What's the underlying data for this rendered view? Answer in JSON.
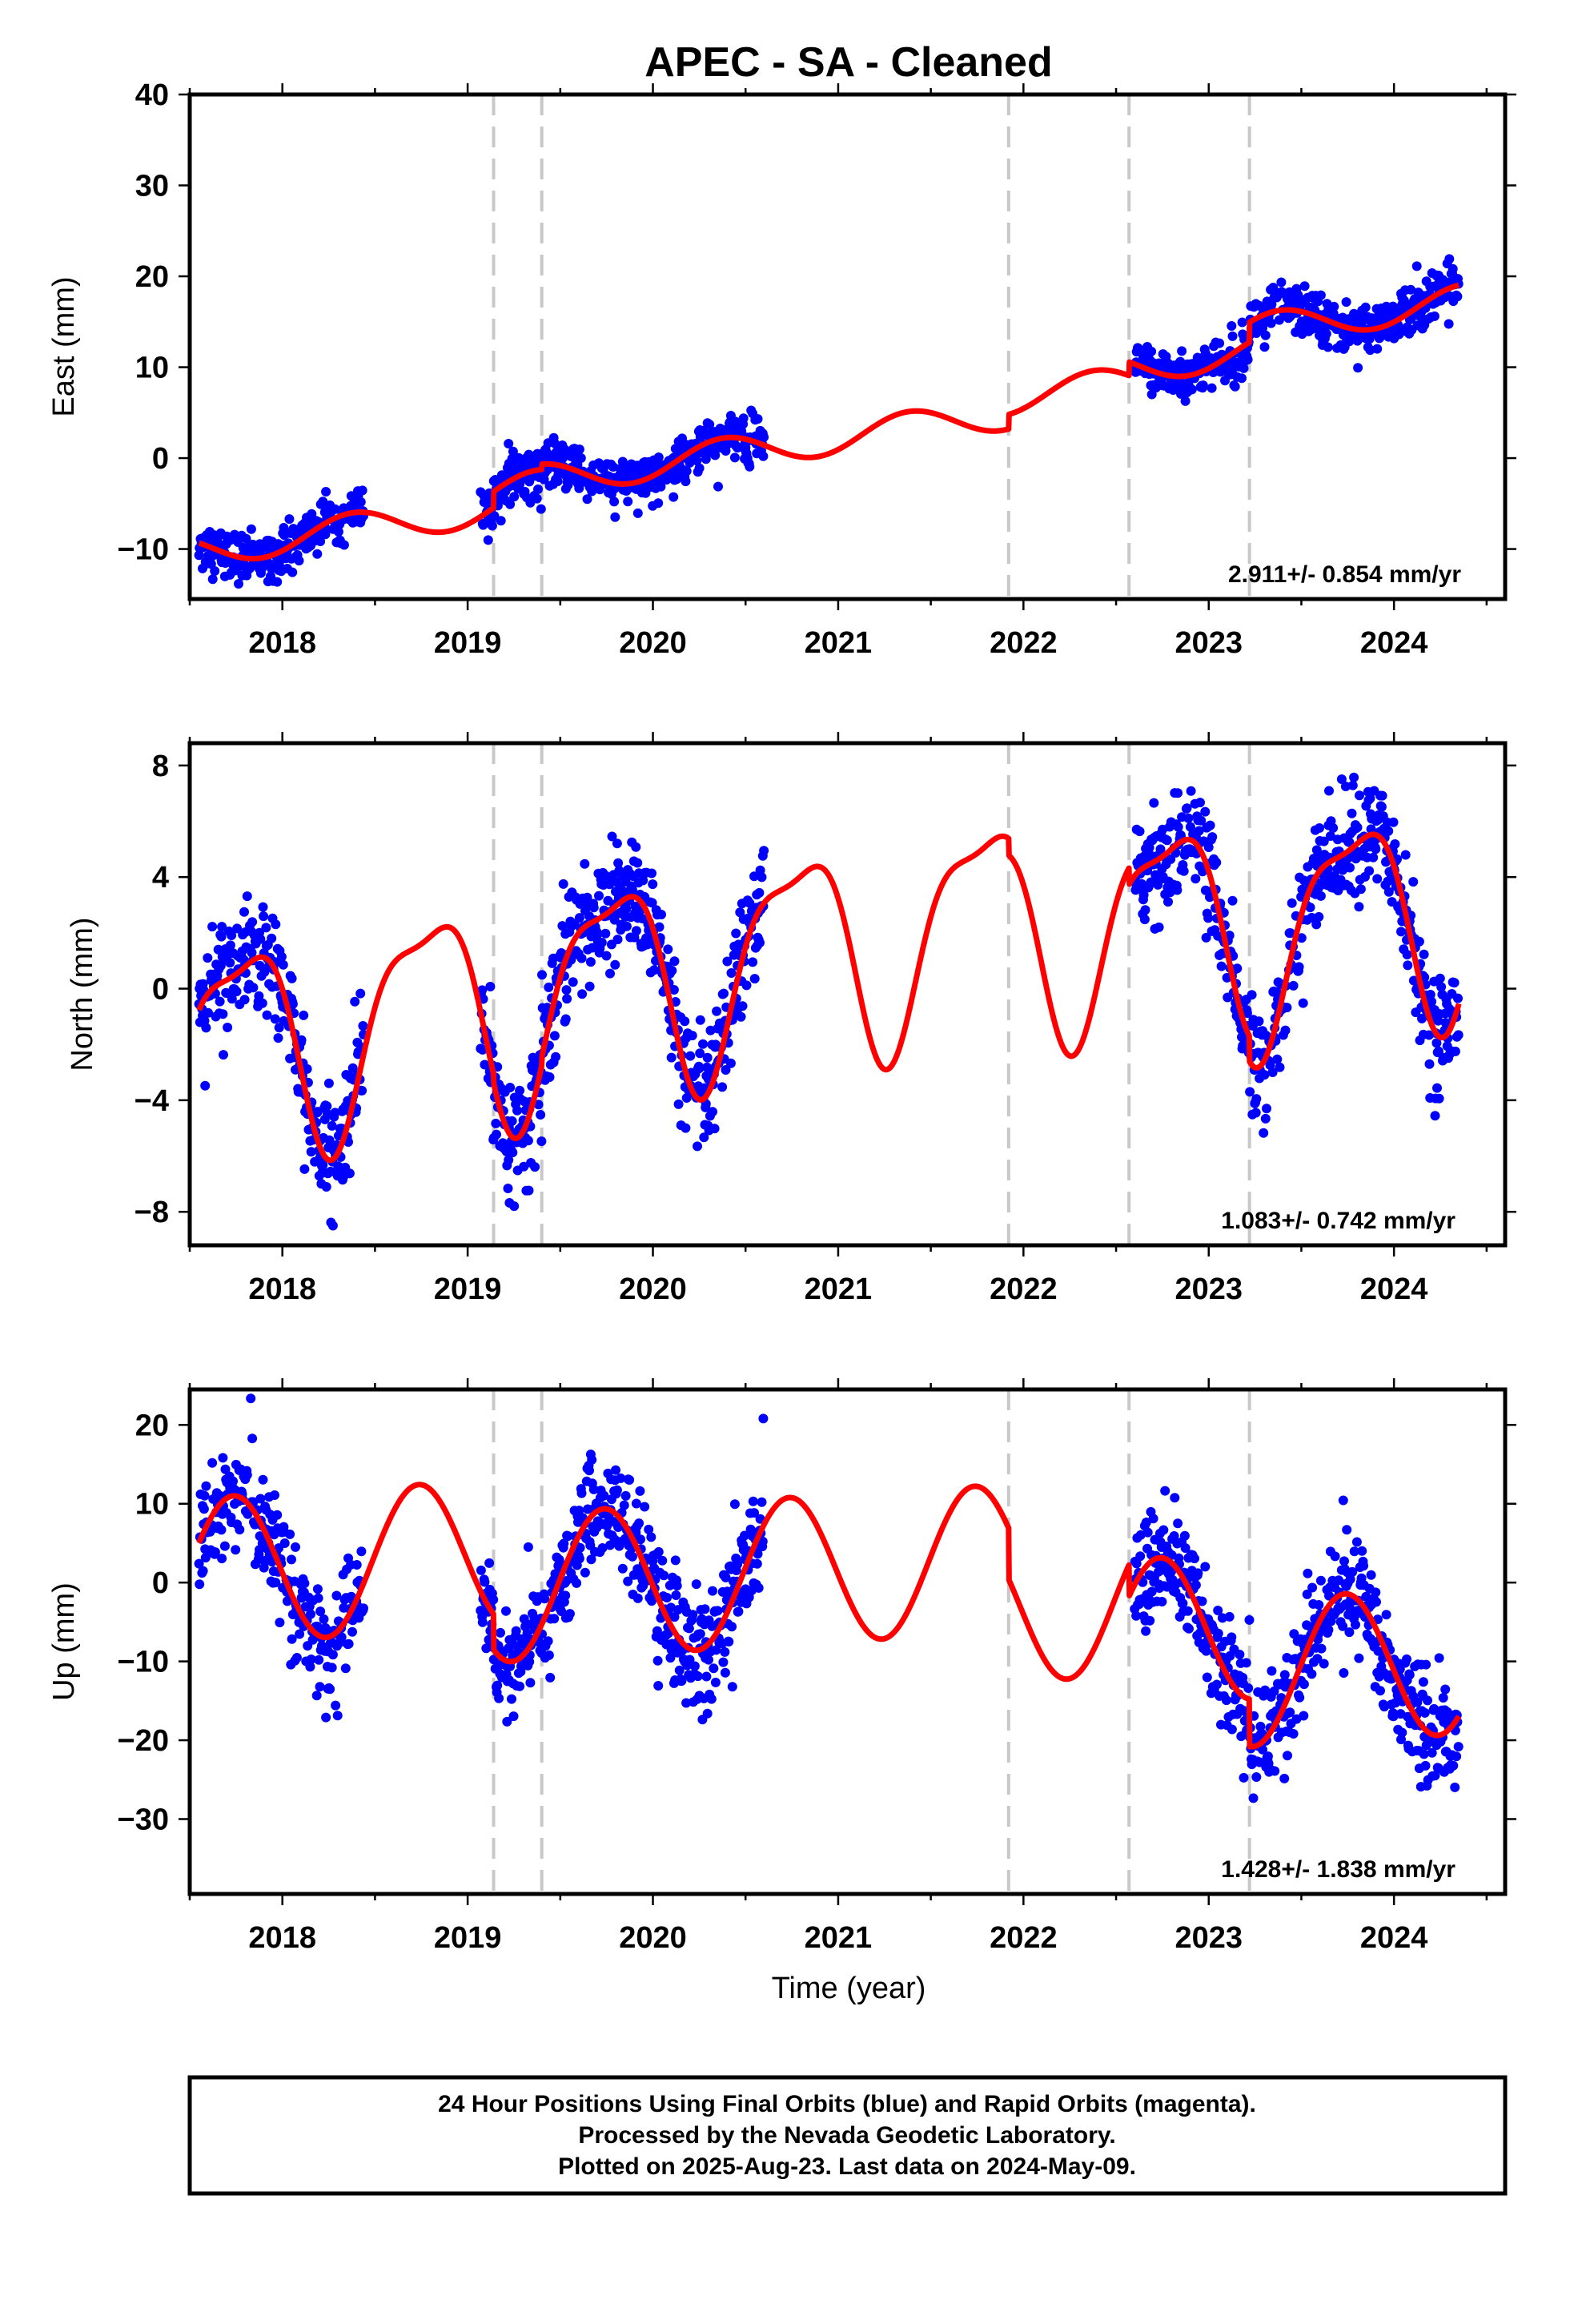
{
  "title": "APEC  - SA - Cleaned",
  "xlabel": "Time (year)",
  "footer": {
    "line1": "24 Hour Positions Using Final Orbits (blue) and Rapid Orbits (magenta).",
    "line2": "Processed by the Nevada Geodetic Laboratory.",
    "line3": "Plotted on 2025-Aug-23. Last data on 2024-May-09."
  },
  "colors": {
    "points": "#0000ff",
    "fit": "#ff0000",
    "gap_lines": "#c8c8c8"
  },
  "chart_data": [
    {
      "type": "scatter",
      "component": "east",
      "ylabel": "East (mm)",
      "ylim": [
        -15.5,
        40
      ],
      "yticks": [
        -10,
        0,
        10,
        20,
        30,
        40
      ],
      "ytick_labels": [
        "−10",
        "0",
        "10",
        "20",
        "30",
        "40"
      ],
      "xlim": [
        2017.5,
        2024.6
      ],
      "xticks": [
        2018,
        2019,
        2020,
        2021,
        2022,
        2023,
        2024
      ],
      "rate_label": "2.911+/- 0.854 mm/yr",
      "equipment_changes": [
        2019.14,
        2019.4,
        2021.92,
        2022.57,
        2023.22
      ],
      "data_segments": [
        [
          2017.55,
          2018.44
        ],
        [
          2019.07,
          2020.6
        ],
        [
          2022.6,
          2024.35
        ]
      ],
      "model": {
        "offset": -10.2,
        "rate": 2.911,
        "ref": 2017.55,
        "annual_sin": 1.2,
        "annual_cos": -1.3,
        "semi_sin": 0.0,
        "semi_cos": 0.0,
        "steps": [
          [
            2019.14,
            1.8
          ],
          [
            2019.4,
            0.6
          ],
          [
            2021.92,
            1.6
          ],
          [
            2022.57,
            1.5
          ],
          [
            2023.22,
            2.2
          ]
        ]
      },
      "scatter_std": 1.3,
      "series": [
        {
          "name": "final orbits",
          "kind": "points"
        },
        {
          "name": "model fit",
          "kind": "line"
        }
      ]
    },
    {
      "type": "scatter",
      "component": "north",
      "ylabel": "North (mm)",
      "ylim": [
        -9.2,
        8.8
      ],
      "yticks": [
        -8,
        -4,
        0,
        4,
        8
      ],
      "ytick_labels": [
        "−8",
        "−4",
        "0",
        "4",
        "8"
      ],
      "xlim": [
        2017.5,
        2024.6
      ],
      "xticks": [
        2018,
        2019,
        2020,
        2021,
        2022,
        2023,
        2024
      ],
      "rate_label": "1.083+/- 0.742 mm/yr",
      "equipment_changes": [
        2019.14,
        2019.4,
        2021.92,
        2022.57,
        2023.22
      ],
      "data_segments": [
        [
          2017.55,
          2018.44
        ],
        [
          2019.07,
          2020.6
        ],
        [
          2022.6,
          2024.35
        ]
      ],
      "model": {
        "offset": -2.2,
        "rate": 1.083,
        "ref": 2017.55,
        "annual_sin": -3.6,
        "annual_cos": 0.6,
        "semi_sin": 0.0,
        "semi_cos": 1.1,
        "steps": [
          [
            2019.14,
            -0.3
          ],
          [
            2019.4,
            0.3
          ],
          [
            2021.92,
            -0.6
          ],
          [
            2022.57,
            -0.6
          ],
          [
            2023.22,
            -0.9
          ]
        ]
      },
      "scatter_std": 1.0,
      "series": [
        {
          "name": "final orbits",
          "kind": "points"
        },
        {
          "name": "model fit",
          "kind": "line"
        }
      ]
    },
    {
      "type": "scatter",
      "component": "up",
      "ylabel": "Up (mm)",
      "ylim": [
        -39.5,
        24.5
      ],
      "yticks": [
        -30,
        -20,
        -10,
        0,
        10,
        20
      ],
      "ytick_labels": [
        "−30",
        "−20",
        "−10",
        "0",
        "10",
        "20"
      ],
      "xlim": [
        2017.5,
        2024.6
      ],
      "xticks": [
        2018,
        2019,
        2020,
        2021,
        2022,
        2023,
        2024
      ],
      "rate_label": "1.428+/- 1.838 mm/yr",
      "equipment_changes": [
        2019.14,
        2019.4,
        2021.92,
        2022.57,
        2023.22
      ],
      "data_segments": [
        [
          2017.55,
          2018.44
        ],
        [
          2019.07,
          2020.6
        ],
        [
          2022.6,
          2024.35
        ]
      ],
      "model": {
        "offset": 1.4,
        "rate": 1.428,
        "ref": 2017.55,
        "annual_sin": -9.3,
        "annual_cos": -0.8,
        "semi_sin": 0.0,
        "semi_cos": 0.0,
        "steps": [
          [
            2019.14,
            -4.5
          ],
          [
            2019.4,
            0.0
          ],
          [
            2021.92,
            -6.5
          ],
          [
            2022.57,
            -4.0
          ],
          [
            2023.22,
            -6.0
          ]
        ]
      },
      "scatter_std": 3.6,
      "series": [
        {
          "name": "final orbits",
          "kind": "points"
        },
        {
          "name": "model fit",
          "kind": "line"
        }
      ]
    }
  ]
}
